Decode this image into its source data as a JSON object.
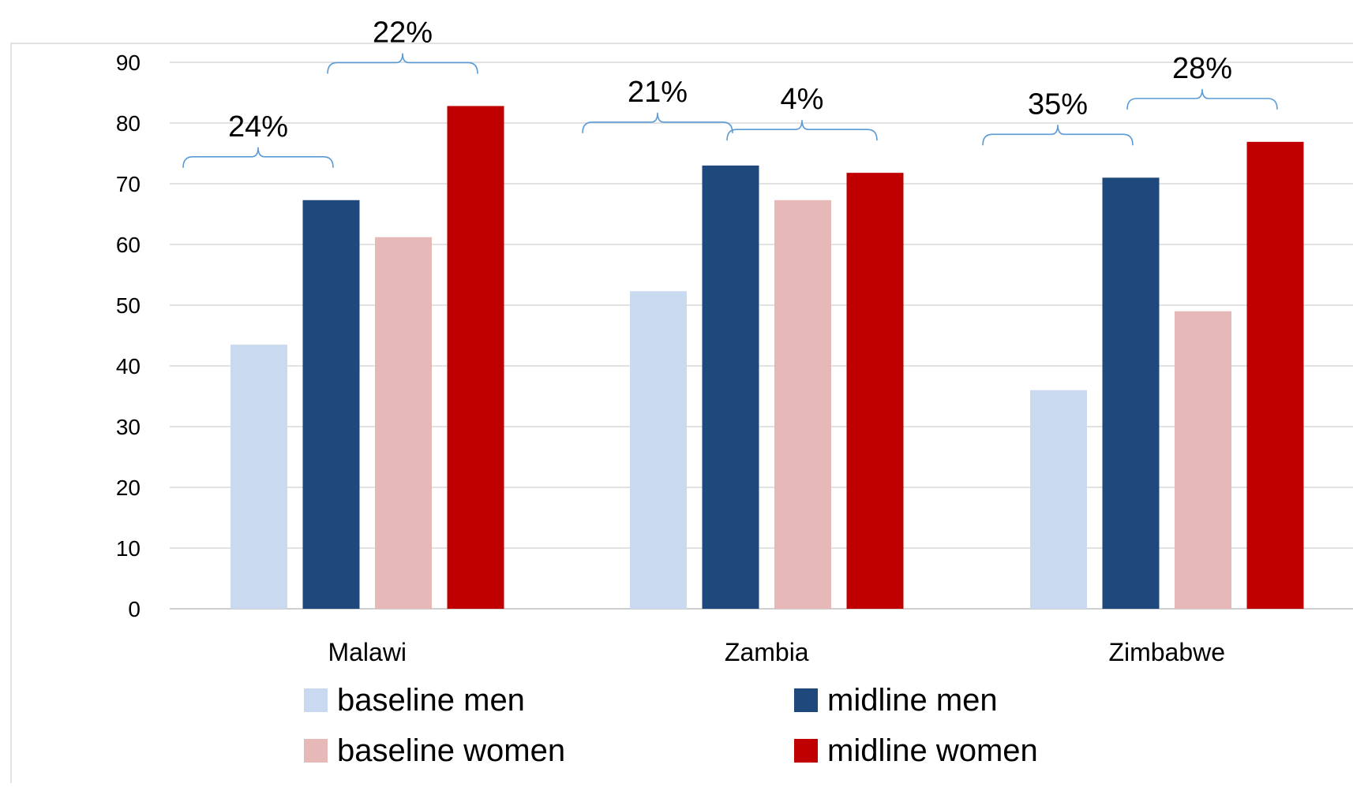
{
  "chart_data": {
    "type": "bar",
    "title": "",
    "xlabel": "",
    "ylabel": "",
    "ylim": [
      0,
      90
    ],
    "yticks": [
      "0",
      "10",
      "20",
      "30",
      "40",
      "50",
      "60",
      "70",
      "80",
      "90"
    ],
    "grid": true,
    "legend_position": "bottom",
    "categories": [
      "Malawi",
      "Zambia",
      "Zimbabwe"
    ],
    "series": [
      {
        "name": "baseline men",
        "color": "#c9daf0",
        "values": [
          43.5,
          52.3,
          36
        ]
      },
      {
        "name": "midline men",
        "color": "#1f497d",
        "values": [
          67.3,
          73,
          71
        ]
      },
      {
        "name": "baseline women",
        "color": "#e6b9b8",
        "values": [
          61.2,
          67.3,
          49
        ]
      },
      {
        "name": "midline women",
        "color": "#c00000",
        "values": [
          82.8,
          71.8,
          76.9
        ]
      }
    ],
    "annotations": [
      {
        "text": "24%",
        "category": "Malawi",
        "pair": "men"
      },
      {
        "text": "22%",
        "category": "Malawi",
        "pair": "women"
      },
      {
        "text": "21%",
        "category": "Zambia",
        "pair": "men"
      },
      {
        "text": "4%",
        "category": "Zambia",
        "pair": "women"
      },
      {
        "text": "35%",
        "category": "Zimbabwe",
        "pair": "men"
      },
      {
        "text": "28%",
        "category": "Zimbabwe",
        "pair": "women"
      }
    ]
  }
}
